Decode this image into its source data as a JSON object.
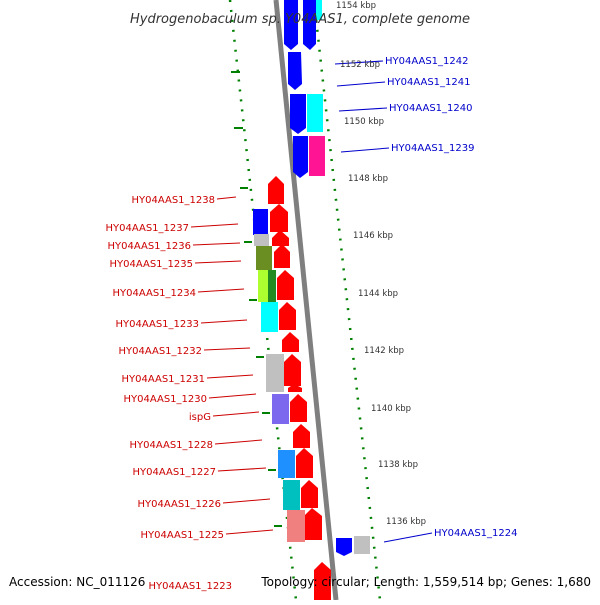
{
  "title": "Hydrogenobaculum sp. Y04AAS1, complete genome",
  "footer": {
    "accession": "Accession: NC_011126",
    "topology": "Topology: circular; Length: 1,559,514 bp; Genes: 1,680"
  },
  "kbp_ticks": [
    "1154 kbp",
    "1152 kbp",
    "1150 kbp",
    "1148 kbp",
    "1146 kbp",
    "1144 kbp",
    "1142 kbp",
    "1140 kbp",
    "1138 kbp",
    "1136 kbp"
  ],
  "left_labels": [
    "HY04AAS1_1238",
    "HY04AAS1_1237",
    "HY04AAS1_1236",
    "HY04AAS1_1235",
    "HY04AAS1_1234",
    "HY04AAS1_1233",
    "HY04AAS1_1232",
    "HY04AAS1_1231",
    "HY04AAS1_1230",
    "ispG",
    "HY04AAS1_1228",
    "HY04AAS1_1227",
    "HY04AAS1_1226",
    "HY04AAS1_1225",
    "HY04AAS1_1223"
  ],
  "right_labels": [
    "HY04AAS1_1242",
    "HY04AAS1_1241",
    "HY04AAS1_1240",
    "HY04AAS1_1239",
    "HY04AAS1_1224"
  ],
  "colors": {
    "forward_strand": "#ff0000",
    "reverse_strand": "#0000ff",
    "left_label": "#cc0000",
    "right_label": "#0000cc",
    "backbone": "#7f7f7f",
    "tick": "#008000"
  }
}
